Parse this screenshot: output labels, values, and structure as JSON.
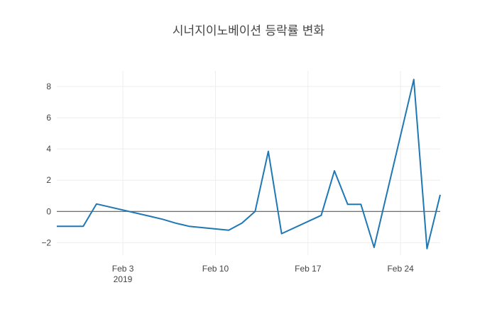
{
  "chart_data": {
    "type": "line",
    "title": "시너지이노베이션 등락률 변화",
    "xlabel": "",
    "ylabel": "",
    "x_range": [
      "2019-01-29",
      "2019-02-27"
    ],
    "ylim": [
      -2.8,
      9.0
    ],
    "y_ticks": [
      -2,
      0,
      2,
      4,
      6,
      8
    ],
    "y_tick_labels": [
      "−2",
      "0",
      "2",
      "4",
      "6",
      "8"
    ],
    "x_ticks": [
      "2019-02-03",
      "2019-02-10",
      "2019-02-17",
      "2019-02-24"
    ],
    "x_tick_labels": [
      "Feb 3",
      "Feb 10",
      "Feb 17",
      "Feb 24"
    ],
    "x_year_label": "2019",
    "grid": true,
    "zeroline": true,
    "line_color": "#1f77b4",
    "series": [
      {
        "x": [
          "2019-01-29",
          "2019-01-30",
          "2019-01-31",
          "2019-02-01",
          "2019-02-05",
          "2019-02-06",
          "2019-02-07",
          "2019-02-08",
          "2019-02-11",
          "2019-02-12",
          "2019-02-13",
          "2019-02-14",
          "2019-02-15",
          "2019-02-18",
          "2019-02-19",
          "2019-02-20",
          "2019-02-21",
          "2019-02-22",
          "2019-02-25",
          "2019-02-26",
          "2019-02-27"
        ],
        "y": [
          -0.95,
          -0.95,
          -0.95,
          0.48,
          -0.3,
          -0.5,
          -0.75,
          -0.95,
          -1.2,
          -0.75,
          0.0,
          3.85,
          -1.42,
          -0.25,
          2.6,
          0.46,
          0.46,
          -2.3,
          8.45,
          -2.38,
          1.07
        ]
      }
    ]
  }
}
